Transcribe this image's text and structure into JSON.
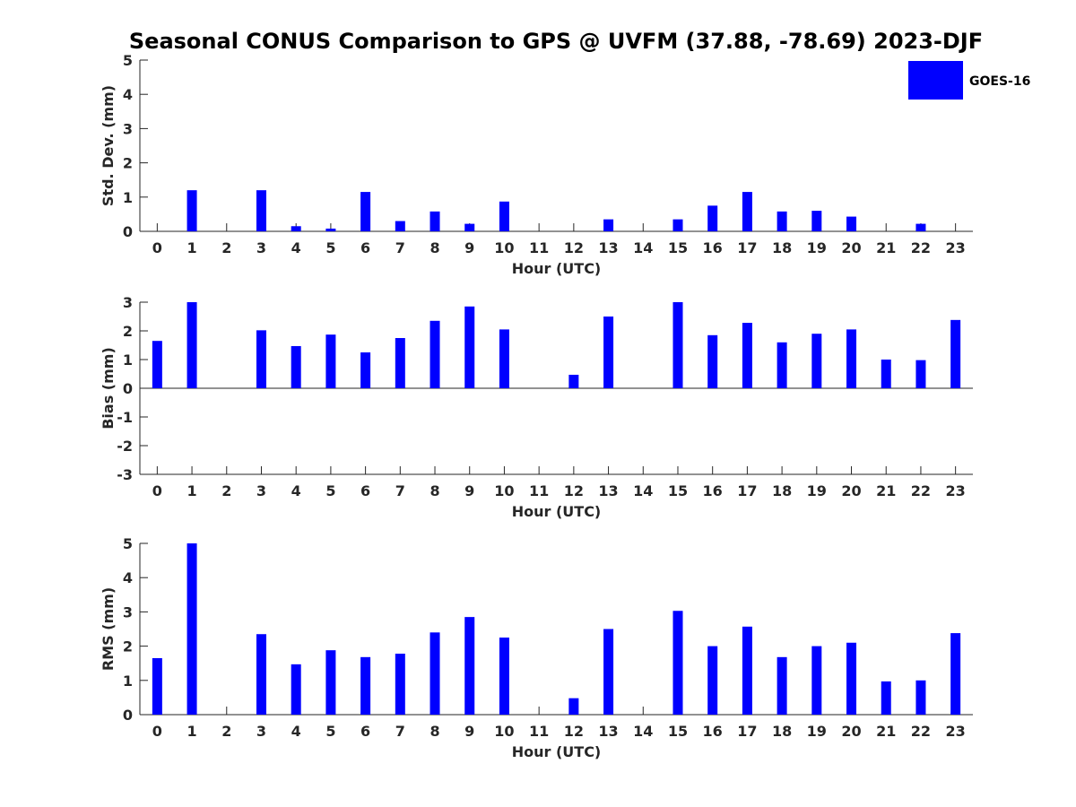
{
  "title": "Seasonal CONUS Comparison to GPS @ UVFM (37.88, -78.69) 2023-DJF",
  "legend": {
    "label": "GOES-16",
    "color": "#0000ff",
    "placement": "top-right"
  },
  "chart_data": [
    {
      "type": "bar",
      "xlabel": "Hour (UTC)",
      "ylabel": "Std. Dev. (mm)",
      "ylim": [
        0,
        5
      ],
      "yticks": [
        "0",
        "1",
        "2",
        "3",
        "4",
        "5"
      ],
      "categories": [
        "0",
        "1",
        "2",
        "3",
        "4",
        "5",
        "6",
        "7",
        "8",
        "9",
        "10",
        "11",
        "12",
        "13",
        "14",
        "15",
        "16",
        "17",
        "18",
        "19",
        "20",
        "21",
        "22",
        "23"
      ],
      "series": [
        {
          "name": "GOES-16",
          "values": [
            0,
            1.2,
            0,
            1.2,
            0.15,
            0.08,
            1.15,
            0.3,
            0.58,
            0.22,
            0.87,
            0,
            0,
            0.35,
            0,
            0.35,
            0.75,
            1.15,
            0.58,
            0.6,
            0.43,
            0,
            0.22,
            0
          ]
        }
      ]
    },
    {
      "type": "bar",
      "xlabel": "Hour (UTC)",
      "ylabel": "Bias (mm)",
      "ylim": [
        -3,
        3
      ],
      "yticks": [
        "-3",
        "-2",
        "-1",
        "0",
        "1",
        "2",
        "3"
      ],
      "categories": [
        "0",
        "1",
        "2",
        "3",
        "4",
        "5",
        "6",
        "7",
        "8",
        "9",
        "10",
        "11",
        "12",
        "13",
        "14",
        "15",
        "16",
        "17",
        "18",
        "19",
        "20",
        "21",
        "22",
        "23"
      ],
      "series": [
        {
          "name": "GOES-16",
          "values": [
            1.65,
            3.0,
            0,
            2.02,
            1.47,
            1.87,
            1.25,
            1.75,
            2.35,
            2.85,
            2.05,
            0,
            0.47,
            2.5,
            0,
            3.0,
            1.85,
            2.28,
            1.6,
            1.9,
            2.05,
            1.0,
            0.98,
            2.38
          ]
        }
      ]
    },
    {
      "type": "bar",
      "xlabel": "Hour (UTC)",
      "ylabel": "RMS (mm)",
      "ylim": [
        0,
        5
      ],
      "yticks": [
        "0",
        "1",
        "2",
        "3",
        "4",
        "5"
      ],
      "categories": [
        "0",
        "1",
        "2",
        "3",
        "4",
        "5",
        "6",
        "7",
        "8",
        "9",
        "10",
        "11",
        "12",
        "13",
        "14",
        "15",
        "16",
        "17",
        "18",
        "19",
        "20",
        "21",
        "22",
        "23"
      ],
      "series": [
        {
          "name": "GOES-16",
          "values": [
            1.65,
            5.0,
            0,
            2.35,
            1.47,
            1.88,
            1.68,
            1.78,
            2.4,
            2.85,
            2.25,
            0,
            0.48,
            2.5,
            0,
            3.03,
            2.0,
            2.57,
            1.68,
            2.0,
            2.1,
            0.97,
            1.0,
            2.38
          ]
        }
      ]
    }
  ]
}
